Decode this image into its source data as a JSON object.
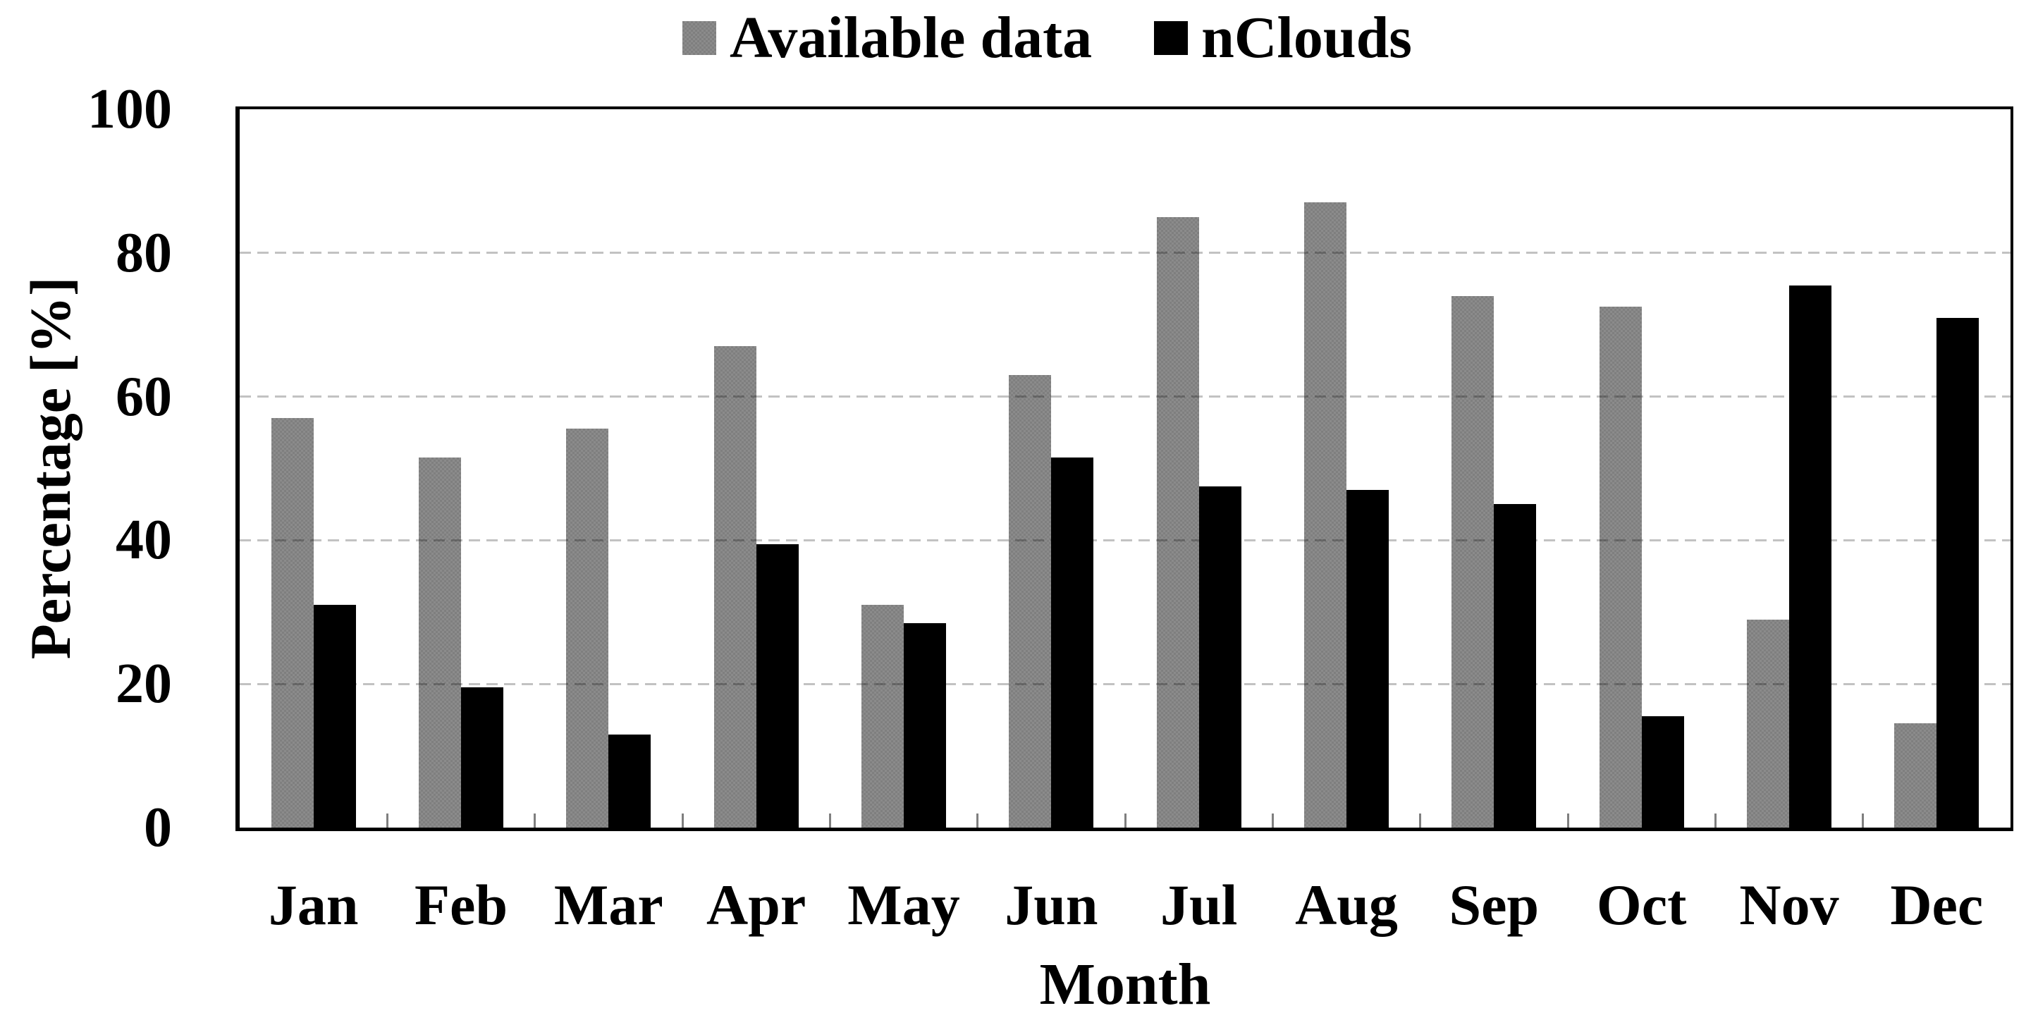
{
  "chart_data": {
    "type": "bar",
    "title": "",
    "categories": [
      "Jan",
      "Feb",
      "Mar",
      "Apr",
      "May",
      "Jun",
      "Jul",
      "Aug",
      "Sep",
      "Oct",
      "Nov",
      "Dec"
    ],
    "series": [
      {
        "name": "Available data",
        "color": "#7f7f7f",
        "pattern": "checker",
        "values": [
          57,
          51.5,
          55.5,
          67,
          31,
          63,
          85,
          87,
          74,
          72.5,
          29,
          14.5
        ]
      },
      {
        "name": "nClouds",
        "color": "#000000",
        "pattern": "solid",
        "values": [
          31,
          19.5,
          13,
          39.5,
          28.5,
          51.5,
          47.5,
          47,
          45,
          15.5,
          75.5,
          71
        ]
      }
    ],
    "xlabel": "Month",
    "ylabel": "Percentage [%]",
    "ylim": [
      0,
      100
    ],
    "yticks": [
      0,
      20,
      40,
      60,
      80,
      100
    ],
    "grid": "horizontal-dashed",
    "legend_position": "top-center"
  },
  "colors": {
    "background": "#ffffff",
    "axis": "#000000",
    "gridline": "rgba(0,0,0,0.24)",
    "tick_mark": "#7f7f7f",
    "series_available_data": "#7f7f7f",
    "series_nclouds": "#000000"
  }
}
